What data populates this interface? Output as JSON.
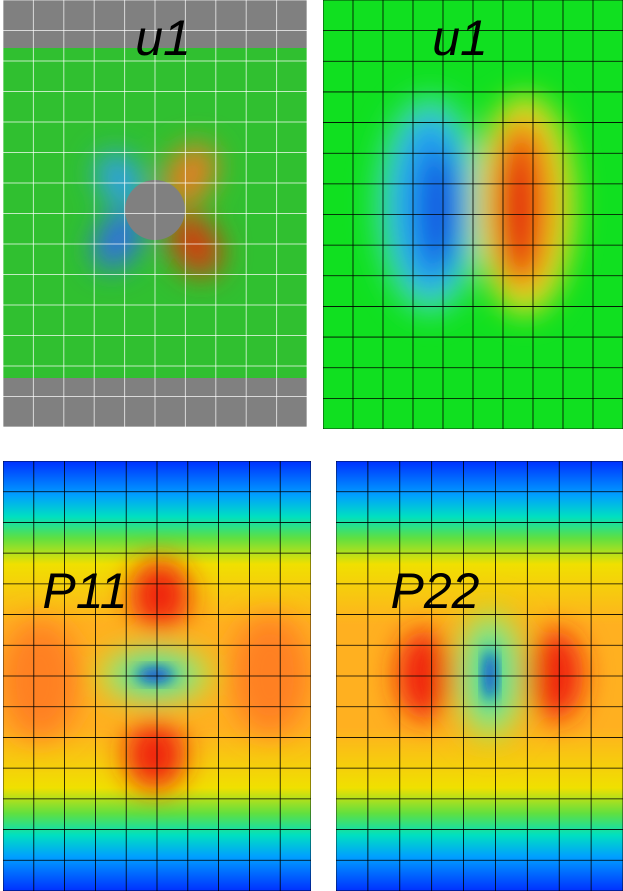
{
  "panels": [
    {
      "label": "u1"
    },
    {
      "label": "u1"
    },
    {
      "label": "P11"
    },
    {
      "label": "P22"
    }
  ]
}
